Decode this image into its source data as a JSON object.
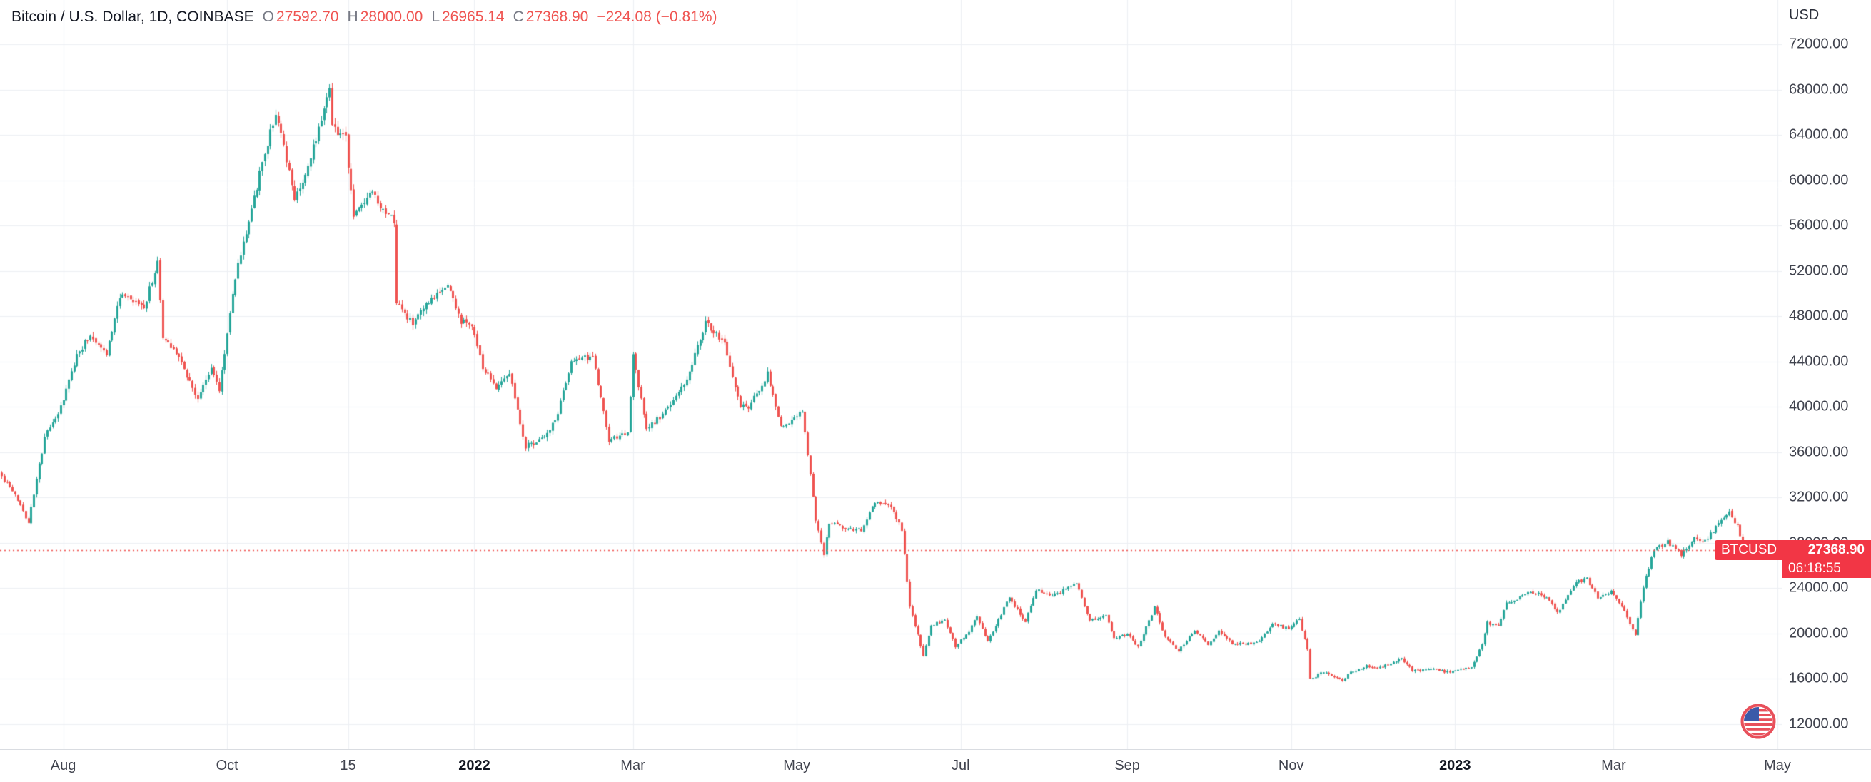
{
  "legend": {
    "title": "Bitcoin / U.S. Dollar, 1D, COINBASE",
    "ohlc": [
      {
        "k": "O",
        "v": "27592.70"
      },
      {
        "k": "H",
        "v": "28000.00"
      },
      {
        "k": "L",
        "v": "26965.14"
      },
      {
        "k": "C",
        "v": "27368.90"
      }
    ],
    "change": "−224.08 (−0.81%)"
  },
  "price_scale": {
    "currency": "USD",
    "badge": {
      "symbol": "BTCUSD",
      "price": "27368.90",
      "countdown": "06:18:55"
    }
  },
  "chart_data": {
    "type": "candlestick",
    "title": "Bitcoin / U.S. Dollar, 1D, COINBASE",
    "symbol": "BTCUSD",
    "exchange": "COINBASE",
    "interval": "1D",
    "quote_currency": "USD",
    "current_price": 27368.9,
    "current_ohlc": {
      "open": 27592.7,
      "high": 28000.0,
      "low": 26965.14,
      "close": 27368.9
    },
    "change_abs": -224.08,
    "change_pct": -0.81,
    "ylim": [
      9800,
      75900
    ],
    "grid": true,
    "y_ticks": [
      72000,
      68000,
      64000,
      60000,
      56000,
      52000,
      48000,
      44000,
      40000,
      36000,
      32000,
      28000,
      24000,
      20000,
      16000,
      12000
    ],
    "x_ticks": [
      {
        "label": "Aug",
        "date": "2021-08-01",
        "bold": false
      },
      {
        "label": "Oct",
        "date": "2021-10-01",
        "bold": false
      },
      {
        "label": "15",
        "date": "2021-11-15",
        "bold": false
      },
      {
        "label": "2022",
        "date": "2022-01-01",
        "bold": true
      },
      {
        "label": "Mar",
        "date": "2022-03-01",
        "bold": false
      },
      {
        "label": "May",
        "date": "2022-05-01",
        "bold": false
      },
      {
        "label": "Jul",
        "date": "2022-07-01",
        "bold": false
      },
      {
        "label": "Sep",
        "date": "2022-09-01",
        "bold": false
      },
      {
        "label": "Nov",
        "date": "2022-11-01",
        "bold": false
      },
      {
        "label": "2023",
        "date": "2023-01-01",
        "bold": true
      },
      {
        "label": "Mar",
        "date": "2023-03-01",
        "bold": false
      },
      {
        "label": "May",
        "date": "2023-05-01",
        "bold": false
      }
    ],
    "price_path_anchors": [
      [
        "2021-07-09",
        34200
      ],
      [
        "2021-07-16",
        31800
      ],
      [
        "2021-07-20",
        29850
      ],
      [
        "2021-07-26",
        37300
      ],
      [
        "2021-08-01",
        39900
      ],
      [
        "2021-08-07",
        44600
      ],
      [
        "2021-08-12",
        46400
      ],
      [
        "2021-08-18",
        44700
      ],
      [
        "2021-08-23",
        49800
      ],
      [
        "2021-09-01",
        48800
      ],
      [
        "2021-09-06",
        52700
      ],
      [
        "2021-09-08",
        46100
      ],
      [
        "2021-09-13",
        44900
      ],
      [
        "2021-09-21",
        40700
      ],
      [
        "2021-09-26",
        43500
      ],
      [
        "2021-09-29",
        41500
      ],
      [
        "2021-10-05",
        51500
      ],
      [
        "2021-10-11",
        57500
      ],
      [
        "2021-10-15",
        61500
      ],
      [
        "2021-10-20",
        66000
      ],
      [
        "2021-10-27",
        58500
      ],
      [
        "2021-11-01",
        61000
      ],
      [
        "2021-11-08",
        67500
      ],
      [
        "2021-11-09",
        68500
      ],
      [
        "2021-11-10",
        64900
      ],
      [
        "2021-11-15",
        63600
      ],
      [
        "2021-11-18",
        56900
      ],
      [
        "2021-11-25",
        58900
      ],
      [
        "2021-11-28",
        57300
      ],
      [
        "2021-12-03",
        56500
      ],
      [
        "2021-12-04",
        49200
      ],
      [
        "2021-12-10",
        47300
      ],
      [
        "2021-12-15",
        48900
      ],
      [
        "2021-12-23",
        50800
      ],
      [
        "2021-12-28",
        47500
      ],
      [
        "2022-01-01",
        47300
      ],
      [
        "2022-01-05",
        43400
      ],
      [
        "2022-01-10",
        41800
      ],
      [
        "2022-01-15",
        43100
      ],
      [
        "2022-01-21",
        36500
      ],
      [
        "2022-01-27",
        37200
      ],
      [
        "2022-02-01",
        38700
      ],
      [
        "2022-02-07",
        44000
      ],
      [
        "2022-02-15",
        44500
      ],
      [
        "2022-02-21",
        37000
      ],
      [
        "2022-02-28",
        37700
      ],
      [
        "2022-03-02",
        44400
      ],
      [
        "2022-03-07",
        38000
      ],
      [
        "2022-03-14",
        39600
      ],
      [
        "2022-03-22",
        42400
      ],
      [
        "2022-03-29",
        47450
      ],
      [
        "2022-04-05",
        45500
      ],
      [
        "2022-04-11",
        40100
      ],
      [
        "2022-04-14",
        39900
      ],
      [
        "2022-04-21",
        42900
      ],
      [
        "2022-04-26",
        38100
      ],
      [
        "2022-05-04",
        39700
      ],
      [
        "2022-05-09",
        30100
      ],
      [
        "2022-05-12",
        27000
      ],
      [
        "2022-05-14",
        29800
      ],
      [
        "2022-05-20",
        29200
      ],
      [
        "2022-05-26",
        29200
      ],
      [
        "2022-05-31",
        31700
      ],
      [
        "2022-06-06",
        31300
      ],
      [
        "2022-06-10",
        29100
      ],
      [
        "2022-06-13",
        22500
      ],
      [
        "2022-06-18",
        18000
      ],
      [
        "2022-06-21",
        20700
      ],
      [
        "2022-06-26",
        21200
      ],
      [
        "2022-06-30",
        18900
      ],
      [
        "2022-07-05",
        20200
      ],
      [
        "2022-07-08",
        21600
      ],
      [
        "2022-07-12",
        19300
      ],
      [
        "2022-07-20",
        23200
      ],
      [
        "2022-07-26",
        21000
      ],
      [
        "2022-07-30",
        23900
      ],
      [
        "2022-08-05",
        23300
      ],
      [
        "2022-08-10",
        23900
      ],
      [
        "2022-08-14",
        24400
      ],
      [
        "2022-08-19",
        21200
      ],
      [
        "2022-08-25",
        21500
      ],
      [
        "2022-08-28",
        19600
      ],
      [
        "2022-09-02",
        19900
      ],
      [
        "2022-09-06",
        18800
      ],
      [
        "2022-09-12",
        22300
      ],
      [
        "2022-09-16",
        19700
      ],
      [
        "2022-09-21",
        18500
      ],
      [
        "2022-09-27",
        20300
      ],
      [
        "2022-10-02",
        19050
      ],
      [
        "2022-10-06",
        20200
      ],
      [
        "2022-10-11",
        19100
      ],
      [
        "2022-10-20",
        19150
      ],
      [
        "2022-10-26",
        20800
      ],
      [
        "2022-11-01",
        20450
      ],
      [
        "2022-11-05",
        21300
      ],
      [
        "2022-11-08",
        18500
      ],
      [
        "2022-11-09",
        16000
      ],
      [
        "2022-11-14",
        16600
      ],
      [
        "2022-11-21",
        15800
      ],
      [
        "2022-11-24",
        16600
      ],
      [
        "2022-11-30",
        17150
      ],
      [
        "2022-12-05",
        17000
      ],
      [
        "2022-12-13",
        17800
      ],
      [
        "2022-12-17",
        16700
      ],
      [
        "2022-12-25",
        16850
      ],
      [
        "2022-12-31",
        16550
      ],
      [
        "2023-01-04",
        16850
      ],
      [
        "2023-01-08",
        17100
      ],
      [
        "2023-01-12",
        19000
      ],
      [
        "2023-01-14",
        20950
      ],
      [
        "2023-01-18",
        20700
      ],
      [
        "2023-01-21",
        22700
      ],
      [
        "2023-01-25",
        23050
      ],
      [
        "2023-01-29",
        23750
      ],
      [
        "2023-02-03",
        23450
      ],
      [
        "2023-02-06",
        22900
      ],
      [
        "2023-02-09",
        21800
      ],
      [
        "2023-02-16",
        24600
      ],
      [
        "2023-02-20",
        24800
      ],
      [
        "2023-02-24",
        23200
      ],
      [
        "2023-03-01",
        23650
      ],
      [
        "2023-03-05",
        22400
      ],
      [
        "2023-03-10",
        19900
      ],
      [
        "2023-03-13",
        24200
      ],
      [
        "2023-03-17",
        27400
      ],
      [
        "2023-03-22",
        28100
      ],
      [
        "2023-03-27",
        27000
      ],
      [
        "2023-04-01",
        28450
      ],
      [
        "2023-04-05",
        28150
      ],
      [
        "2023-04-10",
        29650
      ],
      [
        "2023-04-14",
        30900
      ],
      [
        "2023-04-17",
        29400
      ],
      [
        "2023-04-19",
        27592.7
      ]
    ],
    "colors": {
      "up": "#26a69a",
      "down": "#ef5350",
      "badge": "#f23645",
      "grid": "#edf0f4",
      "price_line": "#ef5350",
      "axis_text": "#40434e",
      "title_text": "#131722"
    }
  }
}
